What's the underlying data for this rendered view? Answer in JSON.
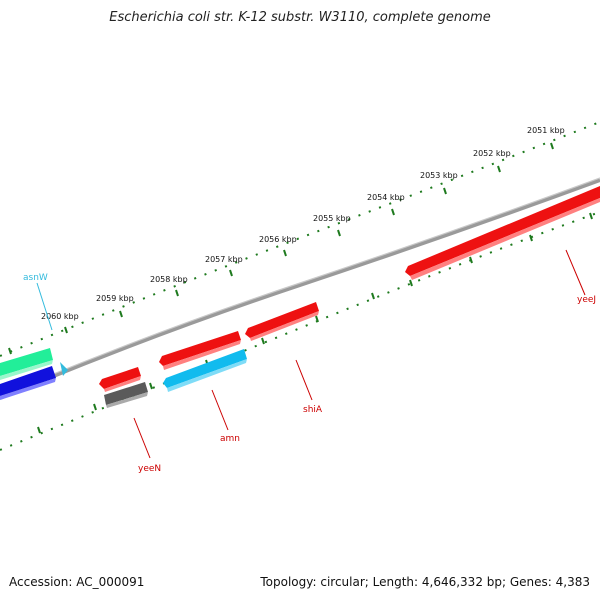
{
  "title": "Escherichia coli str. K-12 substr. W3110, complete genome",
  "accession": "Accession: AC_000091",
  "topology": "Topology: circular; Length: 4,646,332 bp; Genes: 4,383",
  "colors": {
    "backbone": "#7a7a7a",
    "ticks": "#1e7a1e",
    "red_gene": "#ee1111",
    "cyan_gene": "#11bbee",
    "teal_gene": "#22ee99",
    "blue_gene": "#1111dd",
    "gray_gene": "#666666",
    "label_red": "#cc0000",
    "label_cyan": "#33bbdd"
  },
  "ticks": [
    "2051 kbp",
    "2052 kbp",
    "2053 kbp",
    "2054 kbp",
    "2055 kbp",
    "2056 kbp",
    "2057 kbp",
    "2058 kbp",
    "2059 kbp",
    "2060 kbp"
  ],
  "genes": [
    {
      "label": "yeeJ",
      "color": "red"
    },
    {
      "label": "shiA",
      "color": "red"
    },
    {
      "label": "amn",
      "color": "red"
    },
    {
      "label": "yeeN",
      "color": "red"
    },
    {
      "label": "asnW",
      "color": "cyan"
    }
  ]
}
